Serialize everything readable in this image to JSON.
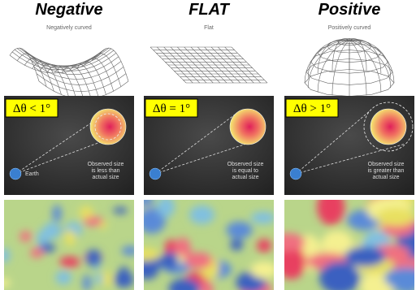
{
  "columns": [
    {
      "heading": "Negative",
      "caption": "Negatively curved",
      "angle_label": "Δθ < 1°",
      "earth_label": "Earth",
      "panel_note_lines": [
        "Observed size",
        "is less than",
        "actual size"
      ]
    },
    {
      "heading": "FLAT",
      "caption": "Flat",
      "angle_label": "Δθ = 1°",
      "panel_note_lines": [
        "Observed size",
        "is equal to",
        "actual size"
      ]
    },
    {
      "heading": "Positive",
      "caption": "Positively curved",
      "angle_label": "Δθ > 1°",
      "panel_note_lines": [
        "Observed size",
        "is greater than",
        "actual size"
      ]
    }
  ]
}
